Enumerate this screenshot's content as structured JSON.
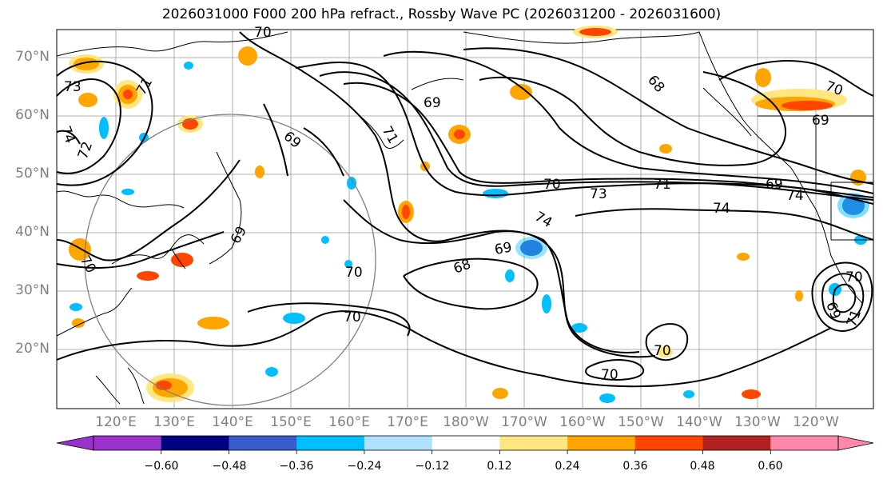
{
  "title": "2026031000 F000 200 hPa refract., Rossby Wave PC (2026031200 - 2026031600)",
  "lat_labels": [
    "70°N",
    "60°N",
    "50°N",
    "40°N",
    "30°N",
    "20°N"
  ],
  "lon_labels": [
    "120°E",
    "130°E",
    "140°E",
    "150°E",
    "160°E",
    "170°E",
    "180°W",
    "170°W",
    "160°W",
    "150°W",
    "140°W",
    "130°W",
    "120°W"
  ],
  "contour_labels": [
    "70",
    "73",
    "71",
    "74",
    "72",
    "69",
    "69",
    "70",
    "68",
    "70",
    "69",
    "73",
    "71",
    "69",
    "74",
    "74",
    "74",
    "70",
    "68",
    "69",
    "70",
    "70",
    "70",
    "70",
    "70",
    "69",
    "69",
    "71",
    "71"
  ],
  "colorbar": {
    "ticks": [
      "−0.60",
      "−0.48",
      "−0.36",
      "−0.24",
      "−0.12",
      "0.12",
      "0.24",
      "0.36",
      "0.48",
      "0.60"
    ],
    "colors": [
      "#9933cc",
      "#000080",
      "#3a5bcc",
      "#00bfff",
      "#aee0ff",
      "#ffffff",
      "#ffe680",
      "#ffa500",
      "#ff4500",
      "#b22222",
      "#ff88aa",
      "#ff88aa"
    ],
    "under_color": "#9933cc",
    "over_color": "#ff88aa"
  },
  "colors": {
    "land_line": "#000000",
    "grid": "#999999",
    "circle": "#808080",
    "contour": "#000000"
  }
}
